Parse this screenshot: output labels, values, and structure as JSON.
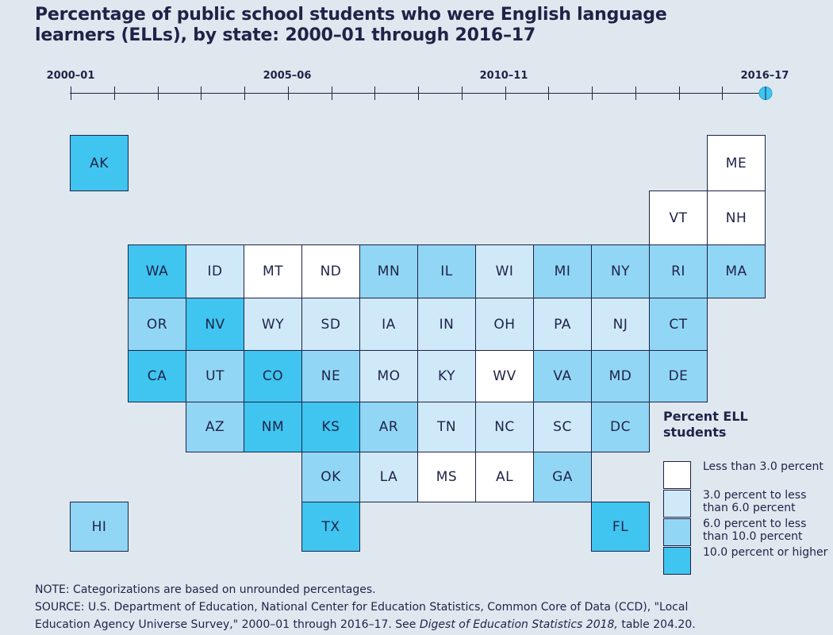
{
  "title": "Percentage of public school students who were English language learners (ELLs), by state: 2000–01 through 2016–17",
  "timeline": {
    "labels": [
      "2000–01",
      "2005–06",
      "2010–11",
      "2016–17"
    ],
    "ticks": [
      "2000–01",
      "2001–02",
      "2002–03",
      "2003–04",
      "2004–05",
      "2005–06",
      "2006–07",
      "2007–08",
      "2008–09",
      "2009–10",
      "2010–11",
      "2011–12",
      "2012–13",
      "2013–14",
      "2014–15",
      "2015–16",
      "2016–17"
    ],
    "selected": "2016–17"
  },
  "colors": {
    "0": "#ffffff",
    "1": "#cfe9f8",
    "2": "#92d6f5",
    "3": "#3fc5f0"
  },
  "legend": {
    "title": "Percent ELL students",
    "items": [
      {
        "level": 0,
        "label": "Less than 3.0 percent"
      },
      {
        "level": 1,
        "label": "3.0 percent to less than 6.0 percent"
      },
      {
        "level": 2,
        "label": "6.0 percent to less than 10.0 percent"
      },
      {
        "level": 3,
        "label": "10.0 percent or higher"
      }
    ]
  },
  "states": [
    {
      "abbr": "AK",
      "level": 3
    },
    {
      "abbr": "ME",
      "level": 0
    },
    {
      "abbr": "VT",
      "level": 0
    },
    {
      "abbr": "NH",
      "level": 0
    },
    {
      "abbr": "WA",
      "level": 3
    },
    {
      "abbr": "ID",
      "level": 1
    },
    {
      "abbr": "MT",
      "level": 0
    },
    {
      "abbr": "ND",
      "level": 0
    },
    {
      "abbr": "MN",
      "level": 2
    },
    {
      "abbr": "IL",
      "level": 2
    },
    {
      "abbr": "WI",
      "level": 1
    },
    {
      "abbr": "MI",
      "level": 2
    },
    {
      "abbr": "NY",
      "level": 2
    },
    {
      "abbr": "RI",
      "level": 2
    },
    {
      "abbr": "MA",
      "level": 2
    },
    {
      "abbr": "OR",
      "level": 2
    },
    {
      "abbr": "NV",
      "level": 3
    },
    {
      "abbr": "WY",
      "level": 1
    },
    {
      "abbr": "SD",
      "level": 1
    },
    {
      "abbr": "IA",
      "level": 1
    },
    {
      "abbr": "IN",
      "level": 1
    },
    {
      "abbr": "OH",
      "level": 1
    },
    {
      "abbr": "PA",
      "level": 1
    },
    {
      "abbr": "NJ",
      "level": 1
    },
    {
      "abbr": "CT",
      "level": 2
    },
    {
      "abbr": "CA",
      "level": 3
    },
    {
      "abbr": "UT",
      "level": 2
    },
    {
      "abbr": "CO",
      "level": 3
    },
    {
      "abbr": "NE",
      "level": 2
    },
    {
      "abbr": "MO",
      "level": 1
    },
    {
      "abbr": "KY",
      "level": 1
    },
    {
      "abbr": "WV",
      "level": 0
    },
    {
      "abbr": "VA",
      "level": 2
    },
    {
      "abbr": "MD",
      "level": 2
    },
    {
      "abbr": "DE",
      "level": 2
    },
    {
      "abbr": "AZ",
      "level": 2
    },
    {
      "abbr": "NM",
      "level": 3
    },
    {
      "abbr": "KS",
      "level": 3
    },
    {
      "abbr": "AR",
      "level": 2
    },
    {
      "abbr": "TN",
      "level": 1
    },
    {
      "abbr": "NC",
      "level": 1
    },
    {
      "abbr": "SC",
      "level": 1
    },
    {
      "abbr": "DC",
      "level": 2
    },
    {
      "abbr": "OK",
      "level": 2
    },
    {
      "abbr": "LA",
      "level": 1
    },
    {
      "abbr": "MS",
      "level": 0
    },
    {
      "abbr": "AL",
      "level": 0
    },
    {
      "abbr": "GA",
      "level": 2
    },
    {
      "abbr": "HI",
      "level": 2
    },
    {
      "abbr": "TX",
      "level": 3
    },
    {
      "abbr": "FL",
      "level": 3
    }
  ],
  "notes": {
    "note": "NOTE: Categorizations are based on unrounded percentages.",
    "source_line1": "SOURCE: U.S. Department of Education, National Center for Education Statistics, Common Core of Data (CCD), \"Local",
    "source_line2_a": "Education Agency Universe Survey,\" 2000–01 through 2016–17. See ",
    "source_line2_italic": "Digest of Education Statistics 2018,",
    "source_line2_b": " table 204.20."
  }
}
